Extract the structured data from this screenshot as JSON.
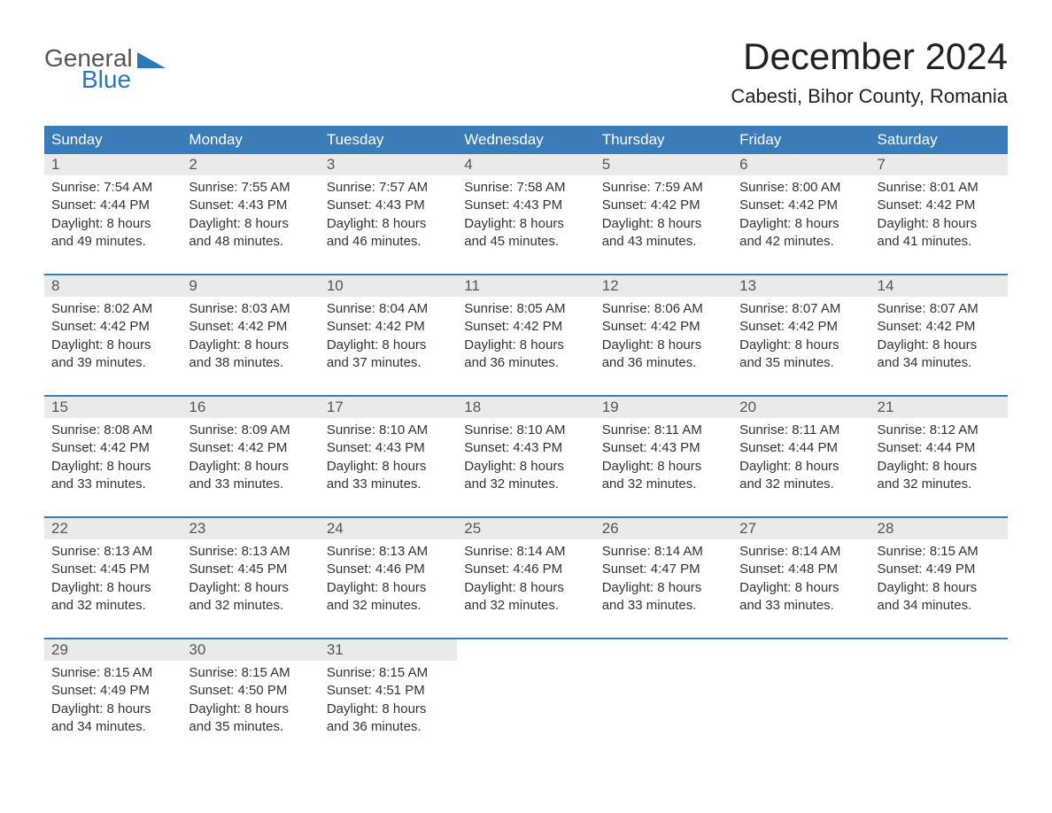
{
  "brand": {
    "text1": "General",
    "text2": "Blue"
  },
  "title": "December 2024",
  "location": "Cabesti, Bihor County, Romania",
  "colors": {
    "header_bg": "#3a7cb8",
    "header_text": "#ffffff",
    "daynum_bg": "#eaeaea",
    "week_border": "#3a7cb8",
    "brand_blue": "#2e77b8",
    "body_text": "#333333",
    "page_bg": "#ffffff"
  },
  "day_headers": [
    "Sunday",
    "Monday",
    "Tuesday",
    "Wednesday",
    "Thursday",
    "Friday",
    "Saturday"
  ],
  "weeks": [
    [
      {
        "n": "1",
        "sunrise": "Sunrise: 7:54 AM",
        "sunset": "Sunset: 4:44 PM",
        "dl1": "Daylight: 8 hours",
        "dl2": "and 49 minutes."
      },
      {
        "n": "2",
        "sunrise": "Sunrise: 7:55 AM",
        "sunset": "Sunset: 4:43 PM",
        "dl1": "Daylight: 8 hours",
        "dl2": "and 48 minutes."
      },
      {
        "n": "3",
        "sunrise": "Sunrise: 7:57 AM",
        "sunset": "Sunset: 4:43 PM",
        "dl1": "Daylight: 8 hours",
        "dl2": "and 46 minutes."
      },
      {
        "n": "4",
        "sunrise": "Sunrise: 7:58 AM",
        "sunset": "Sunset: 4:43 PM",
        "dl1": "Daylight: 8 hours",
        "dl2": "and 45 minutes."
      },
      {
        "n": "5",
        "sunrise": "Sunrise: 7:59 AM",
        "sunset": "Sunset: 4:42 PM",
        "dl1": "Daylight: 8 hours",
        "dl2": "and 43 minutes."
      },
      {
        "n": "6",
        "sunrise": "Sunrise: 8:00 AM",
        "sunset": "Sunset: 4:42 PM",
        "dl1": "Daylight: 8 hours",
        "dl2": "and 42 minutes."
      },
      {
        "n": "7",
        "sunrise": "Sunrise: 8:01 AM",
        "sunset": "Sunset: 4:42 PM",
        "dl1": "Daylight: 8 hours",
        "dl2": "and 41 minutes."
      }
    ],
    [
      {
        "n": "8",
        "sunrise": "Sunrise: 8:02 AM",
        "sunset": "Sunset: 4:42 PM",
        "dl1": "Daylight: 8 hours",
        "dl2": "and 39 minutes."
      },
      {
        "n": "9",
        "sunrise": "Sunrise: 8:03 AM",
        "sunset": "Sunset: 4:42 PM",
        "dl1": "Daylight: 8 hours",
        "dl2": "and 38 minutes."
      },
      {
        "n": "10",
        "sunrise": "Sunrise: 8:04 AM",
        "sunset": "Sunset: 4:42 PM",
        "dl1": "Daylight: 8 hours",
        "dl2": "and 37 minutes."
      },
      {
        "n": "11",
        "sunrise": "Sunrise: 8:05 AM",
        "sunset": "Sunset: 4:42 PM",
        "dl1": "Daylight: 8 hours",
        "dl2": "and 36 minutes."
      },
      {
        "n": "12",
        "sunrise": "Sunrise: 8:06 AM",
        "sunset": "Sunset: 4:42 PM",
        "dl1": "Daylight: 8 hours",
        "dl2": "and 36 minutes."
      },
      {
        "n": "13",
        "sunrise": "Sunrise: 8:07 AM",
        "sunset": "Sunset: 4:42 PM",
        "dl1": "Daylight: 8 hours",
        "dl2": "and 35 minutes."
      },
      {
        "n": "14",
        "sunrise": "Sunrise: 8:07 AM",
        "sunset": "Sunset: 4:42 PM",
        "dl1": "Daylight: 8 hours",
        "dl2": "and 34 minutes."
      }
    ],
    [
      {
        "n": "15",
        "sunrise": "Sunrise: 8:08 AM",
        "sunset": "Sunset: 4:42 PM",
        "dl1": "Daylight: 8 hours",
        "dl2": "and 33 minutes."
      },
      {
        "n": "16",
        "sunrise": "Sunrise: 8:09 AM",
        "sunset": "Sunset: 4:42 PM",
        "dl1": "Daylight: 8 hours",
        "dl2": "and 33 minutes."
      },
      {
        "n": "17",
        "sunrise": "Sunrise: 8:10 AM",
        "sunset": "Sunset: 4:43 PM",
        "dl1": "Daylight: 8 hours",
        "dl2": "and 33 minutes."
      },
      {
        "n": "18",
        "sunrise": "Sunrise: 8:10 AM",
        "sunset": "Sunset: 4:43 PM",
        "dl1": "Daylight: 8 hours",
        "dl2": "and 32 minutes."
      },
      {
        "n": "19",
        "sunrise": "Sunrise: 8:11 AM",
        "sunset": "Sunset: 4:43 PM",
        "dl1": "Daylight: 8 hours",
        "dl2": "and 32 minutes."
      },
      {
        "n": "20",
        "sunrise": "Sunrise: 8:11 AM",
        "sunset": "Sunset: 4:44 PM",
        "dl1": "Daylight: 8 hours",
        "dl2": "and 32 minutes."
      },
      {
        "n": "21",
        "sunrise": "Sunrise: 8:12 AM",
        "sunset": "Sunset: 4:44 PM",
        "dl1": "Daylight: 8 hours",
        "dl2": "and 32 minutes."
      }
    ],
    [
      {
        "n": "22",
        "sunrise": "Sunrise: 8:13 AM",
        "sunset": "Sunset: 4:45 PM",
        "dl1": "Daylight: 8 hours",
        "dl2": "and 32 minutes."
      },
      {
        "n": "23",
        "sunrise": "Sunrise: 8:13 AM",
        "sunset": "Sunset: 4:45 PM",
        "dl1": "Daylight: 8 hours",
        "dl2": "and 32 minutes."
      },
      {
        "n": "24",
        "sunrise": "Sunrise: 8:13 AM",
        "sunset": "Sunset: 4:46 PM",
        "dl1": "Daylight: 8 hours",
        "dl2": "and 32 minutes."
      },
      {
        "n": "25",
        "sunrise": "Sunrise: 8:14 AM",
        "sunset": "Sunset: 4:46 PM",
        "dl1": "Daylight: 8 hours",
        "dl2": "and 32 minutes."
      },
      {
        "n": "26",
        "sunrise": "Sunrise: 8:14 AM",
        "sunset": "Sunset: 4:47 PM",
        "dl1": "Daylight: 8 hours",
        "dl2": "and 33 minutes."
      },
      {
        "n": "27",
        "sunrise": "Sunrise: 8:14 AM",
        "sunset": "Sunset: 4:48 PM",
        "dl1": "Daylight: 8 hours",
        "dl2": "and 33 minutes."
      },
      {
        "n": "28",
        "sunrise": "Sunrise: 8:15 AM",
        "sunset": "Sunset: 4:49 PM",
        "dl1": "Daylight: 8 hours",
        "dl2": "and 34 minutes."
      }
    ],
    [
      {
        "n": "29",
        "sunrise": "Sunrise: 8:15 AM",
        "sunset": "Sunset: 4:49 PM",
        "dl1": "Daylight: 8 hours",
        "dl2": "and 34 minutes."
      },
      {
        "n": "30",
        "sunrise": "Sunrise: 8:15 AM",
        "sunset": "Sunset: 4:50 PM",
        "dl1": "Daylight: 8 hours",
        "dl2": "and 35 minutes."
      },
      {
        "n": "31",
        "sunrise": "Sunrise: 8:15 AM",
        "sunset": "Sunset: 4:51 PM",
        "dl1": "Daylight: 8 hours",
        "dl2": "and 36 minutes."
      },
      {
        "empty": true
      },
      {
        "empty": true
      },
      {
        "empty": true
      },
      {
        "empty": true
      }
    ]
  ]
}
